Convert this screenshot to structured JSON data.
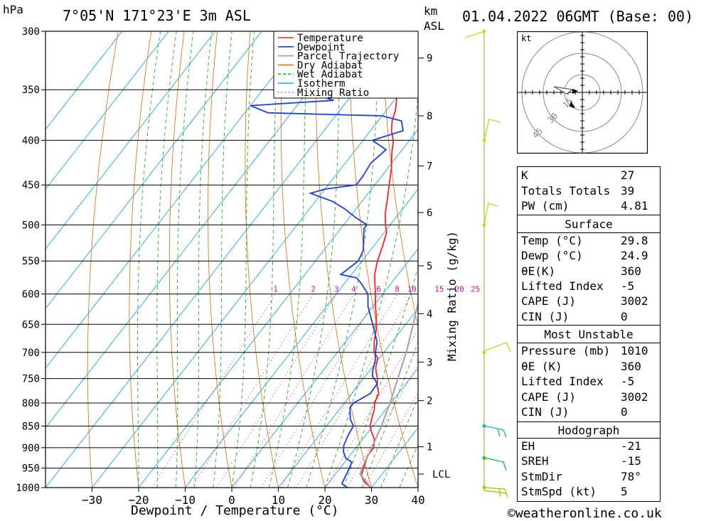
{
  "header": {
    "location": "7°05'N  171°23'E  3m  ASL",
    "datetime": "01.04.2022  06GMT  (Base: 00)",
    "pressure_unit": "hPa",
    "km_unit": "km",
    "asl_unit": "ASL"
  },
  "chart_data": {
    "type": "skew-t",
    "title": "7°05'N 171°23'E 3m ASL",
    "xlabel": "Dewpoint / Temperature (°C)",
    "ylabel": "hPa",
    "right_label": "Mixing Ratio (g/kg)",
    "xlim": [
      -40,
      40
    ],
    "ylim": [
      1000,
      300
    ],
    "pressure_levels": [
      300,
      350,
      400,
      450,
      500,
      550,
      600,
      650,
      700,
      750,
      800,
      850,
      900,
      950,
      1000
    ],
    "temperature_ticks": [
      -30,
      -20,
      -10,
      0,
      10,
      20,
      30,
      40
    ],
    "km_ticks": [
      {
        "label": "9",
        "p": 322
      },
      {
        "label": "8",
        "p": 375
      },
      {
        "label": "7",
        "p": 428
      },
      {
        "label": "6",
        "p": 484
      },
      {
        "label": "5",
        "p": 557
      },
      {
        "label": "4",
        "p": 632
      },
      {
        "label": "3",
        "p": 718
      },
      {
        "label": "2",
        "p": 795
      },
      {
        "label": "1",
        "p": 898
      },
      {
        "label": "LCL",
        "p": 965
      }
    ],
    "mixing_ratio_labels": [
      "1",
      "2",
      "3",
      "4",
      "6",
      "8",
      "10",
      "15",
      "20",
      "25"
    ],
    "legend": [
      {
        "name": "Temperature",
        "color": "#ff2020",
        "style": "solid"
      },
      {
        "name": "Dewpoint",
        "color": "#1a3fe0",
        "style": "solid"
      },
      {
        "name": "Parcel Trajectory",
        "color": "#a0a0a0",
        "style": "solid"
      },
      {
        "name": "Dry Adiabat",
        "color": "#e07818",
        "style": "solid"
      },
      {
        "name": "Wet Adiabat",
        "color": "#20b020",
        "style": "dashed"
      },
      {
        "name": "Isotherm",
        "color": "#1aa8e8",
        "style": "solid"
      },
      {
        "name": "Mixing Ratio",
        "color": "#d01090",
        "style": "dotted"
      }
    ],
    "series": [
      {
        "name": "Temperature",
        "points": [
          [
            1000,
            29.8
          ],
          [
            985,
            27.5
          ],
          [
            970,
            25.9
          ],
          [
            950,
            25.0
          ],
          [
            935,
            24.5
          ],
          [
            920,
            23.8
          ],
          [
            900,
            23.8
          ],
          [
            880,
            22.5
          ],
          [
            860,
            20.3
          ],
          [
            850,
            19.4
          ],
          [
            830,
            18.3
          ],
          [
            815,
            17.6
          ],
          [
            800,
            16.5
          ],
          [
            780,
            15.8
          ],
          [
            765,
            14.2
          ],
          [
            750,
            13.0
          ],
          [
            730,
            10.9
          ],
          [
            710,
            9.6
          ],
          [
            700,
            7.9
          ],
          [
            680,
            6.1
          ],
          [
            660,
            4.6
          ],
          [
            640,
            2.7
          ],
          [
            620,
            0.5
          ],
          [
            600,
            -1.6
          ],
          [
            585,
            -3.3
          ],
          [
            570,
            -5.0
          ],
          [
            550,
            -6.7
          ],
          [
            530,
            -8.0
          ],
          [
            510,
            -9.5
          ],
          [
            500,
            -11.0
          ],
          [
            485,
            -13.0
          ],
          [
            470,
            -14.6
          ],
          [
            450,
            -16.9
          ],
          [
            430,
            -19.3
          ],
          [
            415,
            -21.5
          ],
          [
            400,
            -23.5
          ],
          [
            390,
            -25.5
          ],
          [
            380,
            -27.0
          ],
          [
            370,
            -28.0
          ],
          [
            360,
            -29.5
          ],
          [
            352,
            -31.0
          ]
        ]
      },
      {
        "name": "Dewpoint",
        "points": [
          [
            1000,
            24.9
          ],
          [
            990,
            23.0
          ],
          [
            970,
            22.5
          ],
          [
            950,
            22.0
          ],
          [
            935,
            21.5
          ],
          [
            925,
            19.5
          ],
          [
            910,
            18.0
          ],
          [
            895,
            17.0
          ],
          [
            870,
            16.2
          ],
          [
            850,
            15.8
          ],
          [
            835,
            14.0
          ],
          [
            810,
            12.0
          ],
          [
            800,
            12.0
          ],
          [
            780,
            14.0
          ],
          [
            760,
            13.8
          ],
          [
            745,
            11.5
          ],
          [
            735,
            10.7
          ],
          [
            715,
            9.5
          ],
          [
            700,
            8.2
          ],
          [
            680,
            6.7
          ],
          [
            650,
            2.9
          ],
          [
            620,
            -1.1
          ],
          [
            600,
            -3.2
          ],
          [
            585,
            -6.1
          ],
          [
            575,
            -8.3
          ],
          [
            570,
            -12.3
          ],
          [
            550,
            -10.8
          ],
          [
            535,
            -11.5
          ],
          [
            520,
            -13.2
          ],
          [
            505,
            -15.0
          ],
          [
            500,
            -15.0
          ],
          [
            490,
            -18.8
          ],
          [
            480,
            -22.2
          ],
          [
            470,
            -26.3
          ],
          [
            460,
            -32.4
          ],
          [
            455,
            -30.0
          ],
          [
            450,
            -24.0
          ],
          [
            440,
            -24.0
          ],
          [
            425,
            -24.5
          ],
          [
            410,
            -23.5
          ],
          [
            400,
            -28.0
          ],
          [
            390,
            -23.0
          ],
          [
            380,
            -25.0
          ],
          [
            375,
            -30.0
          ],
          [
            372,
            -55.0
          ],
          [
            365,
            -60.0
          ],
          [
            360,
            -43.0
          ],
          [
            350,
            -52.0
          ],
          [
            345,
            -46.0
          ],
          [
            335,
            -42.0
          ],
          [
            330,
            -46.0
          ],
          [
            322,
            -53.0
          ],
          [
            310,
            -52.5
          ],
          [
            300,
            -52.0
          ]
        ]
      },
      {
        "name": "Parcel Trajectory",
        "points": [
          [
            1000,
            29.8
          ],
          [
            965,
            25.3
          ],
          [
            950,
            24.7
          ],
          [
            900,
            23.4
          ],
          [
            850,
            21.8
          ],
          [
            800,
            19.8
          ],
          [
            750,
            17.4
          ],
          [
            700,
            14.8
          ],
          [
            650,
            11.6
          ],
          [
            600,
            8.0
          ],
          [
            550,
            3.6
          ],
          [
            500,
            -1.6
          ],
          [
            450,
            -7.8
          ],
          [
            400,
            -15.5
          ],
          [
            370,
            -21.0
          ]
        ]
      }
    ],
    "hodograph": {
      "unit": "kt",
      "rings": [
        "15",
        "30",
        "45"
      ]
    }
  },
  "indices": {
    "general": [
      {
        "label": "K",
        "value": "27"
      },
      {
        "label": "Totals Totals",
        "value": "39"
      },
      {
        "label": "PW (cm)",
        "value": "4.81"
      }
    ],
    "surface": {
      "title": "Surface",
      "rows": [
        {
          "label": "Temp (°C)",
          "value": "29.8"
        },
        {
          "label": "Dewp (°C)",
          "value": "24.9"
        },
        {
          "label": "θE(K)",
          "value": "360"
        },
        {
          "label": "Lifted Index",
          "value": "-5"
        },
        {
          "label": "CAPE (J)",
          "value": "3002"
        },
        {
          "label": "CIN (J)",
          "value": "0"
        }
      ]
    },
    "most_unstable": {
      "title": "Most Unstable",
      "rows": [
        {
          "label": "Pressure (mb)",
          "value": "1010"
        },
        {
          "label": "θE (K)",
          "value": "360"
        },
        {
          "label": "Lifted Index",
          "value": "-5"
        },
        {
          "label": "CAPE (J)",
          "value": "3002"
        },
        {
          "label": "CIN (J)",
          "value": "0"
        }
      ]
    },
    "hodograph": {
      "title": "Hodograph",
      "rows": [
        {
          "label": "EH",
          "value": "-21"
        },
        {
          "label": "SREH",
          "value": "-15"
        },
        {
          "label": "StmDir",
          "value": "78°"
        },
        {
          "label": "StmSpd (kt)",
          "value": "5"
        }
      ]
    }
  },
  "footer": {
    "credit": "©weatheronline.co.uk"
  }
}
